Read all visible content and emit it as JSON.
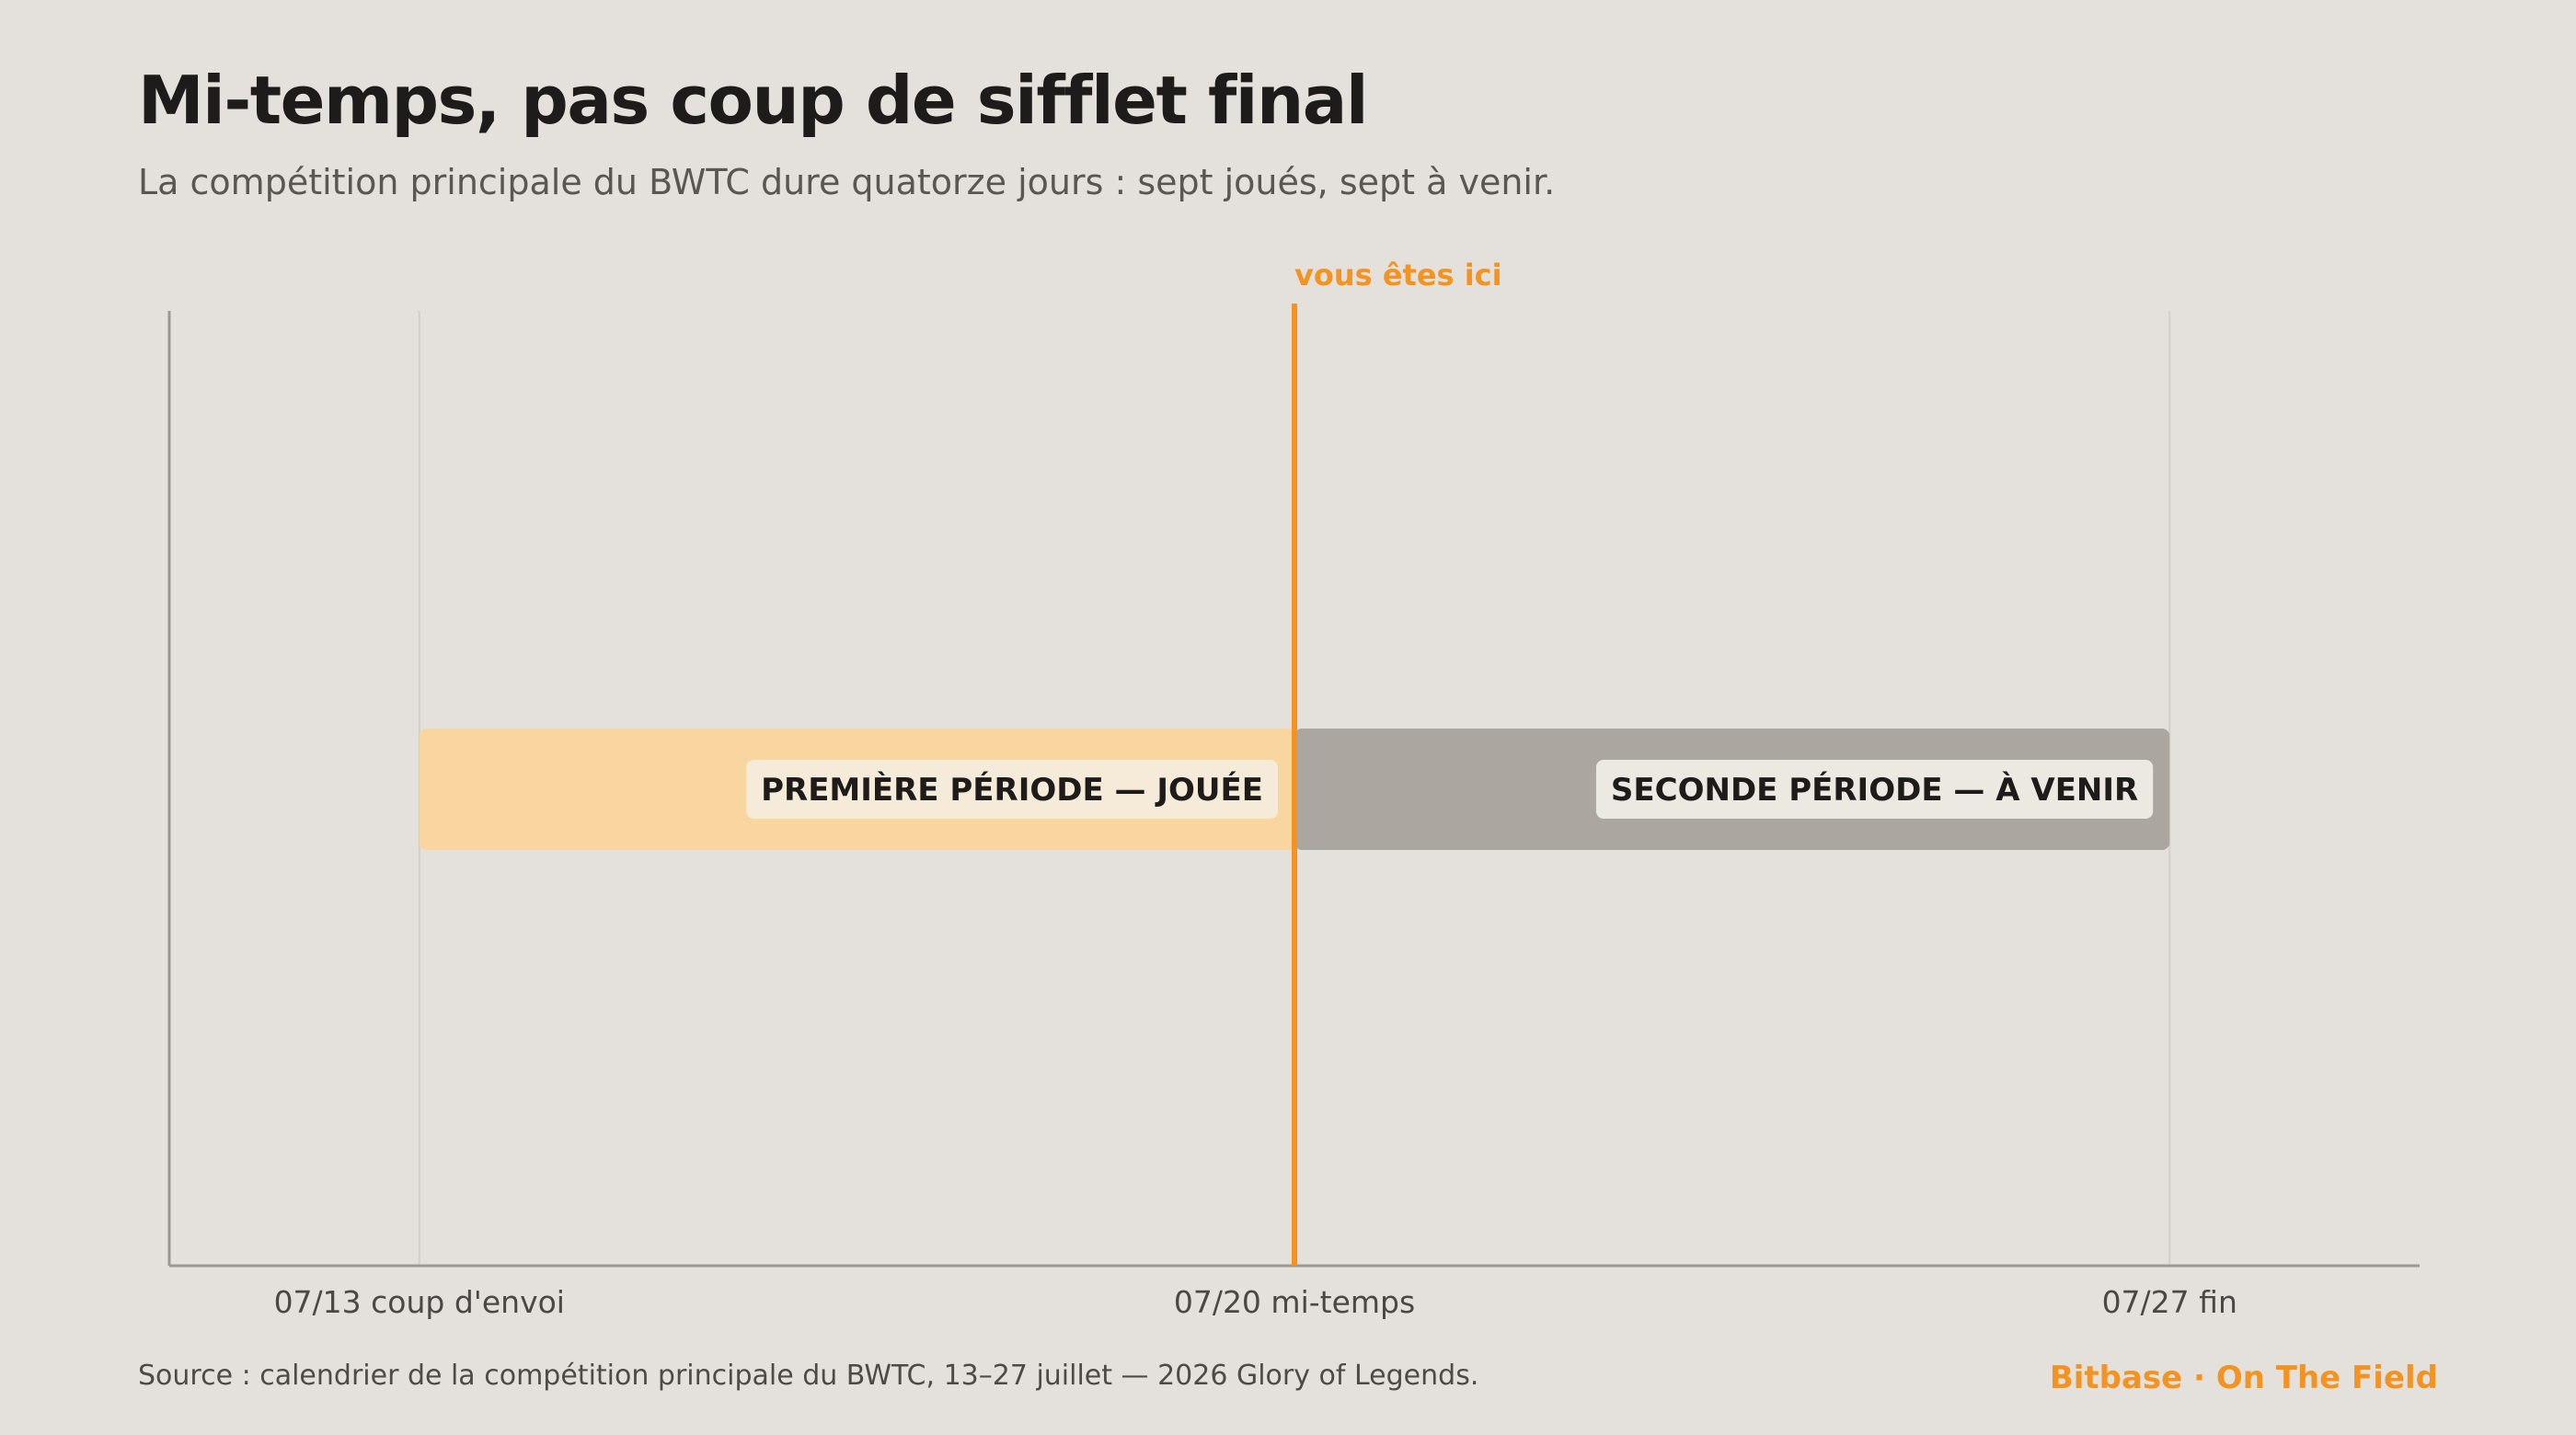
{
  "header": {
    "title": "Mi-temps, pas coup de sifflet final",
    "subtitle": "La compétition principale du BWTC dure quatorze jours : sept joués, sept à venir."
  },
  "footer": {
    "source": "Source : calendrier de la compétition principale du BWTC, 13–27 juillet — 2026 Glory of Legends.",
    "brand": "Bitbase · On The Field"
  },
  "colors": {
    "accent": "#f39422",
    "played": "#f9d5a0",
    "upcoming": "#aba6a0",
    "label_played_bg": "#f6ead8",
    "label_upcoming_bg": "#ece8e2",
    "axis": "#9c9892",
    "grid": "#d2cec8",
    "tick_text": "#4a4744"
  },
  "chart_data": {
    "type": "timeline",
    "xlim": [
      "07/11",
      "07/29"
    ],
    "grid": true,
    "ticks": [
      {
        "date": "07/13",
        "label": "07/13 coup d'envoi"
      },
      {
        "date": "07/20",
        "label": "07/20 mi-temps"
      },
      {
        "date": "07/27",
        "label": "07/27 fin"
      }
    ],
    "segments": [
      {
        "label": "PREMIÈRE PÉRIODE — JOUÉE",
        "start": "07/13",
        "end": "07/20",
        "status": "played"
      },
      {
        "label": "SECONDE PÉRIODE — À VENIR",
        "start": "07/20",
        "end": "07/27",
        "status": "upcoming"
      }
    ],
    "marker": {
      "date": "07/20",
      "label": "vous êtes ici"
    }
  }
}
